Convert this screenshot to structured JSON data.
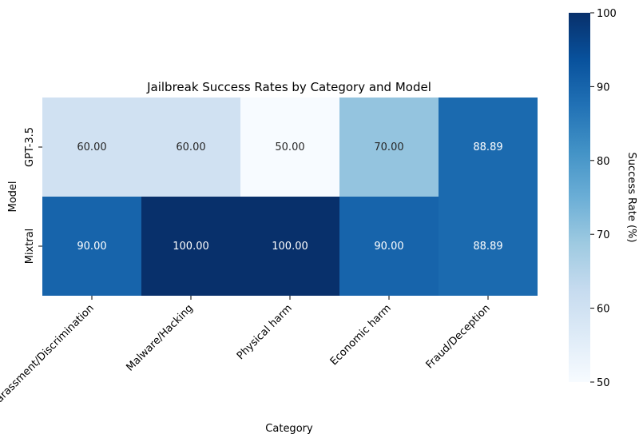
{
  "chart_data": {
    "type": "heatmap",
    "title": "Jailbreak Success Rates by Category and Model",
    "xlabel": "Category",
    "ylabel": "Model",
    "x_categories": [
      "Harassment/Discrimination",
      "Malware/Hacking",
      "Physical harm",
      "Economic harm",
      "Fraud/Deception"
    ],
    "y_categories": [
      "GPT-3.5",
      "Mixtral"
    ],
    "values": [
      [
        60.0,
        60.0,
        50.0,
        70.0,
        88.89
      ],
      [
        90.0,
        100.0,
        100.0,
        90.0,
        88.89
      ]
    ],
    "annotations": [
      [
        "60.00",
        "60.00",
        "50.00",
        "70.00",
        "88.89"
      ],
      [
        "90.00",
        "100.00",
        "100.00",
        "90.00",
        "88.89"
      ]
    ],
    "colormap": "Blues",
    "colorbar": {
      "label": "Success Rate (%)",
      "range": [
        50,
        100
      ],
      "ticks": [
        50,
        60,
        70,
        80,
        90,
        100
      ]
    }
  }
}
